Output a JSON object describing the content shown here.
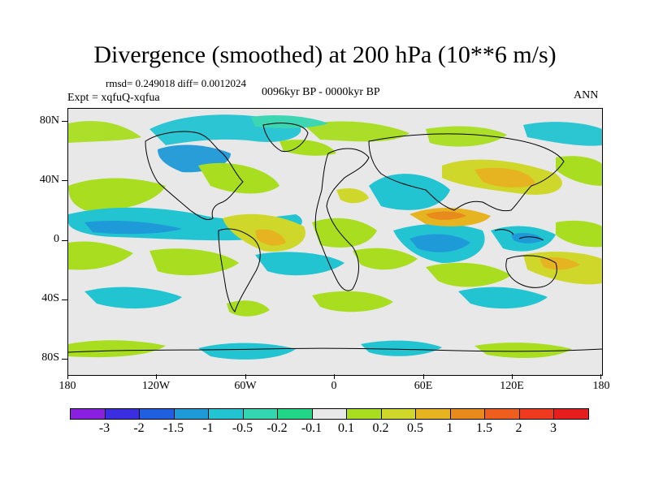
{
  "title": "Divergence (smoothed) at 200 hPa (10**6 m/s)",
  "stats": "rmsd= 0.249018 diff= 0.0012024",
  "expt": "Expt = xqfuQ-xqfua",
  "period": "0096kyr BP - 0000kyr BP",
  "season": "ANN",
  "lat_labels": [
    "80N",
    "40N",
    "0",
    "40S",
    "80S"
  ],
  "lon_labels": [
    "180",
    "120W",
    "60W",
    "0",
    "60E",
    "120E",
    "180"
  ],
  "colorbar": {
    "colors": [
      "#8a1fe0",
      "#3a2ee0",
      "#1f5fe0",
      "#1f9ad8",
      "#22c4d2",
      "#33d6b0",
      "#22d688",
      "#e8e8e8",
      "#a8de1f",
      "#cfd82a",
      "#e6b421",
      "#e88a1c",
      "#ee5f1f",
      "#ee3a1f",
      "#e61d1d"
    ],
    "labels": [
      "-3",
      "-2",
      "-1.5",
      "-1",
      "-0.5",
      "-0.2",
      "-0.1",
      "0.1",
      "0.2",
      "0.5",
      "1",
      "1.5",
      "2",
      "3"
    ]
  },
  "icon_names": [
    "world-coastline-map"
  ]
}
